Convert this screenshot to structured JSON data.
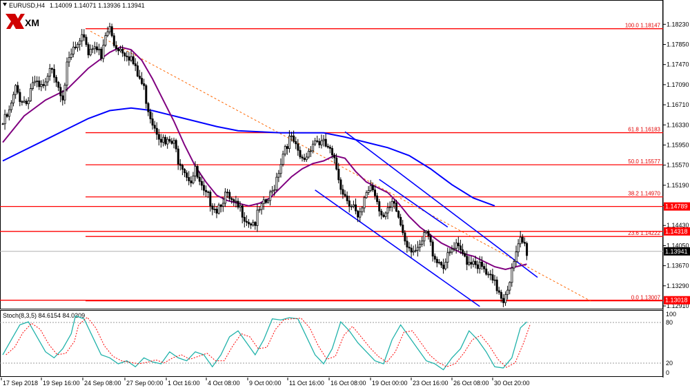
{
  "header": {
    "symbol_info": "EURUSD,H4",
    "ohlc": "1.14009 1.14071 1.13936 1.13941"
  },
  "logo": {
    "text": "XM"
  },
  "stoch": {
    "title": "Stoch(8,3,5) 84.6154 84.0209",
    "ticks": [
      "100",
      "80",
      "20",
      "0"
    ]
  },
  "price_axis": [
    "1.18230",
    "1.17850",
    "1.17470",
    "1.17090",
    "1.16710",
    "1.16330",
    "1.15950",
    "1.15570",
    "1.15190",
    "1.14810",
    "1.14430",
    "1.14050",
    "1.13670",
    "1.13290",
    "1.12910"
  ],
  "price_tags": [
    {
      "price": 1.14789,
      "label": "1.14789",
      "color": "#ff0000"
    },
    {
      "price": 1.14318,
      "label": "1.14318",
      "color": "#ff0000"
    },
    {
      "price": 1.13941,
      "label": "1.13941",
      "color": "#000000"
    },
    {
      "price": 1.13018,
      "label": "1.13018",
      "color": "#ff0000"
    }
  ],
  "fib_levels": [
    {
      "price": 1.18147,
      "label": "100.0 1.18147"
    },
    {
      "price": 1.16183,
      "label": "61.8 1.16183"
    },
    {
      "price": 1.15577,
      "label": "50.0 1.15577"
    },
    {
      "price": 1.1497,
      "label": "38.2 1.14970"
    },
    {
      "price": 1.14222,
      "label": "23.6 1.14222"
    },
    {
      "price": 1.13007,
      "label": "0.0 1.13007"
    }
  ],
  "time_axis": [
    "17 Sep 2018",
    "19 Sep 16:00",
    "24 Sep 08:00",
    "27 Sep 00:00",
    "1 Oct 16:00",
    "4 Oct 08:00",
    "9 Oct 00:00",
    "11 Oct 16:00",
    "16 Oct 08:00",
    "19 Oct 00:00",
    "23 Oct 16:00",
    "26 Oct 08:00",
    "30 Oct 20:00"
  ],
  "colors": {
    "candle": "#000000",
    "fib": "#ff0000",
    "ma_fast": "#800080",
    "ma_slow": "#0000ff",
    "channel": "#0000ff",
    "trend": "#ff6600",
    "stoch_main": "#20b2aa",
    "stoch_signal": "#ff0000"
  },
  "chart_data": {
    "type": "candlestick",
    "symbol": "EURUSD",
    "timeframe": "H4",
    "ylim": [
      1.1291,
      1.1842
    ],
    "close_points": [
      [
        0,
        1.1635
      ],
      [
        3,
        1.1655
      ],
      [
        6,
        1.17
      ],
      [
        8,
        1.1685
      ],
      [
        11,
        1.1675
      ],
      [
        14,
        1.1715
      ],
      [
        17,
        1.17
      ],
      [
        20,
        1.1705
      ],
      [
        23,
        1.1745
      ],
      [
        26,
        1.171
      ],
      [
        28,
        1.169
      ],
      [
        30,
        1.174
      ],
      [
        33,
        1.1775
      ],
      [
        36,
        1.178
      ],
      [
        38,
        1.1805
      ],
      [
        40,
        1.177
      ],
      [
        43,
        1.179
      ],
      [
        46,
        1.1755
      ],
      [
        48,
        1.18
      ],
      [
        50,
        1.1815
      ],
      [
        52,
        1.1785
      ],
      [
        54,
        1.178
      ],
      [
        56,
        1.1775
      ],
      [
        58,
        1.177
      ],
      [
        60,
        1.176
      ],
      [
        62,
        1.1735
      ],
      [
        63,
        1.1725
      ],
      [
        64,
        1.172
      ],
      [
        66,
        1.17
      ],
      [
        68,
        1.1665
      ],
      [
        70,
        1.164
      ],
      [
        72,
        1.1625
      ],
      [
        74,
        1.161
      ],
      [
        76,
        1.1595
      ],
      [
        78,
        1.16
      ],
      [
        80,
        1.1595
      ],
      [
        82,
        1.157
      ],
      [
        84,
        1.156
      ],
      [
        86,
        1.154
      ],
      [
        88,
        1.153
      ],
      [
        90,
        1.1545
      ],
      [
        92,
        1.152
      ],
      [
        94,
        1.15
      ],
      [
        96,
        1.1495
      ],
      [
        98,
        1.1485
      ],
      [
        100,
        1.1475
      ],
      [
        102,
        1.149
      ],
      [
        104,
        1.15
      ],
      [
        106,
        1.149
      ],
      [
        108,
        1.148
      ],
      [
        110,
        1.1475
      ],
      [
        112,
        1.147
      ],
      [
        114,
        1.1455
      ],
      [
        116,
        1.145
      ],
      [
        118,
        1.145
      ],
      [
        120,
        1.147
      ],
      [
        122,
        1.148
      ],
      [
        124,
        1.149
      ],
      [
        126,
        1.1505
      ],
      [
        128,
        1.1535
      ],
      [
        130,
        1.1565
      ],
      [
        132,
        1.1595
      ],
      [
        134,
        1.1605
      ],
      [
        136,
        1.16
      ],
      [
        138,
        1.1575
      ],
      [
        140,
        1.1565
      ],
      [
        142,
        1.1575
      ],
      [
        144,
        1.1595
      ],
      [
        146,
        1.1605
      ],
      [
        148,
        1.16
      ],
      [
        150,
        1.1595
      ],
      [
        152,
        1.159
      ],
      [
        154,
        1.157
      ],
      [
        156,
        1.155
      ],
      [
        158,
        1.152
      ],
      [
        160,
        1.15
      ],
      [
        162,
        1.149
      ],
      [
        164,
        1.148
      ],
      [
        166,
        1.145
      ],
      [
        168,
        1.147
      ],
      [
        170,
        1.1505
      ],
      [
        172,
        1.152
      ],
      [
        174,
        1.1505
      ],
      [
        176,
        1.148
      ],
      [
        178,
        1.146
      ],
      [
        180,
        1.1465
      ],
      [
        182,
        1.148
      ],
      [
        184,
        1.147
      ],
      [
        186,
        1.1445
      ],
      [
        188,
        1.142
      ],
      [
        190,
        1.1405
      ],
      [
        192,
        1.14
      ],
      [
        194,
        1.139
      ],
      [
        196,
        1.141
      ],
      [
        198,
        1.143
      ],
      [
        200,
        1.1405
      ],
      [
        202,
        1.1385
      ],
      [
        204,
        1.1375
      ],
      [
        206,
        1.137
      ],
      [
        208,
        1.138
      ],
      [
        210,
        1.1395
      ],
      [
        212,
        1.14
      ],
      [
        214,
        1.139
      ],
      [
        216,
        1.1385
      ],
      [
        218,
        1.1375
      ],
      [
        220,
        1.138
      ],
      [
        222,
        1.137
      ],
      [
        224,
        1.136
      ],
      [
        226,
        1.135
      ],
      [
        228,
        1.134
      ],
      [
        230,
        1.133
      ],
      [
        232,
        1.132
      ],
      [
        234,
        1.1305
      ],
      [
        236,
        1.133
      ],
      [
        238,
        1.1355
      ],
      [
        240,
        1.1385
      ],
      [
        242,
        1.1415
      ],
      [
        244,
        1.1405
      ],
      [
        245,
        1.1394
      ]
    ],
    "ma_fast_points": [
      [
        0,
        1.16
      ],
      [
        10,
        1.165
      ],
      [
        20,
        1.168
      ],
      [
        30,
        1.17
      ],
      [
        40,
        1.174
      ],
      [
        50,
        1.177
      ],
      [
        55,
        1.178
      ],
      [
        60,
        1.1775
      ],
      [
        65,
        1.1755
      ],
      [
        70,
        1.172
      ],
      [
        75,
        1.168
      ],
      [
        80,
        1.164
      ],
      [
        85,
        1.1595
      ],
      [
        90,
        1.1555
      ],
      [
        95,
        1.1525
      ],
      [
        100,
        1.15
      ],
      [
        105,
        1.149
      ],
      [
        110,
        1.1485
      ],
      [
        115,
        1.148
      ],
      [
        120,
        1.1485
      ],
      [
        125,
        1.1495
      ],
      [
        130,
        1.1515
      ],
      [
        135,
        1.1535
      ],
      [
        140,
        1.155
      ],
      [
        145,
        1.156
      ],
      [
        150,
        1.1565
      ],
      [
        155,
        1.1575
      ],
      [
        160,
        1.157
      ],
      [
        165,
        1.1545
      ],
      [
        170,
        1.1525
      ],
      [
        175,
        1.1515
      ],
      [
        180,
        1.1505
      ],
      [
        185,
        1.1485
      ],
      [
        190,
        1.146
      ],
      [
        195,
        1.144
      ],
      [
        200,
        1.1425
      ],
      [
        205,
        1.141
      ],
      [
        210,
        1.14
      ],
      [
        215,
        1.139
      ],
      [
        220,
        1.1385
      ],
      [
        225,
        1.1375
      ],
      [
        230,
        1.1365
      ],
      [
        235,
        1.136
      ],
      [
        240,
        1.1365
      ],
      [
        245,
        1.137
      ]
    ],
    "ma_slow_points": [
      [
        0,
        1.1565
      ],
      [
        10,
        1.1585
      ],
      [
        20,
        1.1605
      ],
      [
        30,
        1.1625
      ],
      [
        40,
        1.1645
      ],
      [
        50,
        1.166
      ],
      [
        60,
        1.1665
      ],
      [
        70,
        1.166
      ],
      [
        80,
        1.165
      ],
      [
        90,
        1.164
      ],
      [
        100,
        1.163
      ],
      [
        110,
        1.1622
      ],
      [
        120,
        1.162
      ],
      [
        130,
        1.1618
      ],
      [
        140,
        1.1618
      ],
      [
        150,
        1.1618
      ],
      [
        160,
        1.161
      ],
      [
        170,
        1.16
      ],
      [
        180,
        1.159
      ],
      [
        190,
        1.1575
      ],
      [
        200,
        1.155
      ],
      [
        210,
        1.152
      ],
      [
        220,
        1.1495
      ],
      [
        230,
        1.148
      ]
    ],
    "channel_upper": [
      [
        160,
        1.162
      ],
      [
        250,
        1.1345
      ]
    ],
    "channel_lower": [
      [
        146,
        1.151
      ],
      [
        223,
        1.129
      ]
    ],
    "channel_mid": [
      [
        176,
        1.153
      ],
      [
        208,
        1.144
      ]
    ],
    "trendline": [
      [
        41,
        1.181
      ],
      [
        275,
        1.13
      ]
    ],
    "stoch_main": [
      [
        0,
        30
      ],
      [
        4,
        55
      ],
      [
        8,
        80
      ],
      [
        12,
        85
      ],
      [
        16,
        60
      ],
      [
        20,
        35
      ],
      [
        24,
        25
      ],
      [
        28,
        40
      ],
      [
        32,
        65
      ],
      [
        34,
        95
      ],
      [
        38,
        90
      ],
      [
        42,
        60
      ],
      [
        46,
        30
      ],
      [
        50,
        25
      ],
      [
        54,
        15
      ],
      [
        58,
        20
      ],
      [
        62,
        10
      ],
      [
        66,
        25
      ],
      [
        70,
        18
      ],
      [
        74,
        15
      ],
      [
        78,
        35
      ],
      [
        82,
        25
      ],
      [
        86,
        20
      ],
      [
        90,
        35
      ],
      [
        94,
        30
      ],
      [
        98,
        10
      ],
      [
        102,
        30
      ],
      [
        106,
        60
      ],
      [
        110,
        70
      ],
      [
        114,
        50
      ],
      [
        118,
        30
      ],
      [
        122,
        55
      ],
      [
        126,
        90
      ],
      [
        130,
        88
      ],
      [
        134,
        92
      ],
      [
        138,
        90
      ],
      [
        142,
        60
      ],
      [
        146,
        30
      ],
      [
        150,
        15
      ],
      [
        154,
        40
      ],
      [
        158,
        85
      ],
      [
        162,
        70
      ],
      [
        166,
        50
      ],
      [
        170,
        35
      ],
      [
        174,
        20
      ],
      [
        178,
        15
      ],
      [
        182,
        55
      ],
      [
        186,
        80
      ],
      [
        190,
        60
      ],
      [
        194,
        40
      ],
      [
        198,
        20
      ],
      [
        202,
        15
      ],
      [
        206,
        5
      ],
      [
        210,
        25
      ],
      [
        214,
        40
      ],
      [
        218,
        70
      ],
      [
        222,
        55
      ],
      [
        226,
        35
      ],
      [
        230,
        10
      ],
      [
        234,
        8
      ],
      [
        238,
        25
      ],
      [
        242,
        75
      ],
      [
        245,
        85
      ]
    ]
  }
}
